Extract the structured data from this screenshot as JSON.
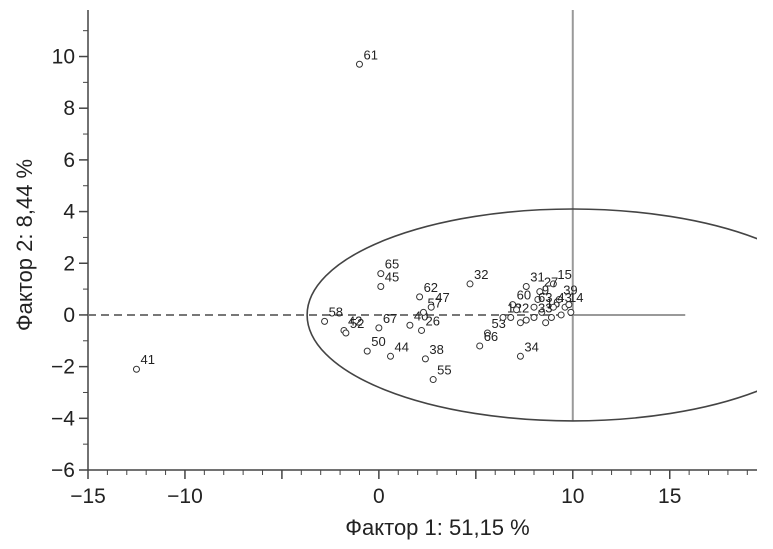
{
  "chart_data": {
    "type": "scatter",
    "title": "",
    "xlabel": "Фактор 1: 51,15 %",
    "ylabel": "Фактор 2: 8,44 %",
    "xlim": [
      -15,
      19.5
    ],
    "ylim": [
      -6,
      11.8
    ],
    "xticks": [
      -15,
      -10,
      -5,
      0,
      5,
      10,
      15
    ],
    "yticks": [
      -6,
      -4,
      -2,
      0,
      2,
      4,
      6,
      8,
      10
    ],
    "xtick_labels": [
      "−15",
      "−10",
      "",
      "0",
      "",
      "10",
      "15"
    ],
    "ytick_labels": [
      "−6",
      "−4",
      "−2",
      "0",
      "2",
      "4",
      "6",
      "8",
      "10"
    ],
    "grid": false,
    "reference_lines": {
      "vertical_x": 10,
      "horizontal_dashed_y": 0
    },
    "ellipse": {
      "center": [
        10,
        0
      ],
      "semi_axis_x": 13.7,
      "semi_axis_y": 4.1
    },
    "points": [
      {
        "label": "61",
        "x": -1,
        "y": 9.7
      },
      {
        "label": "41",
        "x": -12.5,
        "y": -2.1
      },
      {
        "label": "58",
        "x": -2.8,
        "y": -0.25
      },
      {
        "label": "42",
        "x": -1.8,
        "y": -0.6
      },
      {
        "label": "52",
        "x": -1.7,
        "y": -0.7
      },
      {
        "label": "65",
        "x": 0.1,
        "y": 1.6
      },
      {
        "label": "45",
        "x": 0.1,
        "y": 1.1
      },
      {
        "label": "67",
        "x": 0.0,
        "y": -0.5
      },
      {
        "label": "50",
        "x": -0.6,
        "y": -1.4
      },
      {
        "label": "44",
        "x": 0.6,
        "y": -1.6
      },
      {
        "label": "62",
        "x": 2.1,
        "y": 0.7
      },
      {
        "label": "40",
        "x": 1.6,
        "y": -0.4
      },
      {
        "label": "57",
        "x": 2.3,
        "y": 0.1
      },
      {
        "label": "47",
        "x": 2.7,
        "y": 0.3
      },
      {
        "label": "26",
        "x": 2.2,
        "y": -0.6
      },
      {
        "label": "38",
        "x": 2.4,
        "y": -1.7
      },
      {
        "label": "55",
        "x": 2.8,
        "y": -2.5
      },
      {
        "label": "32",
        "x": 4.7,
        "y": 1.2
      },
      {
        "label": "53",
        "x": 5.6,
        "y": -0.7
      },
      {
        "label": "66",
        "x": 5.2,
        "y": -1.2
      },
      {
        "label": "34",
        "x": 7.3,
        "y": -1.6
      },
      {
        "label": "31",
        "x": 7.6,
        "y": 1.1
      },
      {
        "label": "15",
        "x": 9.0,
        "y": 1.2
      },
      {
        "label": "27",
        "x": 8.3,
        "y": 0.9
      },
      {
        "label": "60",
        "x": 6.9,
        "y": 0.4
      },
      {
        "label": "9",
        "x": 8.2,
        "y": 0.6
      },
      {
        "label": "63",
        "x": 8.0,
        "y": 0.3
      },
      {
        "label": "39",
        "x": 9.3,
        "y": 0.6
      },
      {
        "label": "12",
        "x": 6.4,
        "y": -0.1
      },
      {
        "label": "22",
        "x": 6.8,
        "y": -0.1
      },
      {
        "label": "16",
        "x": 8.4,
        "y": 0.1
      },
      {
        "label": "43",
        "x": 9.0,
        "y": 0.3
      },
      {
        "label": "33",
        "x": 8.0,
        "y": -0.1
      },
      {
        "label": "14",
        "x": 9.6,
        "y": 0.3
      },
      {
        "label": "",
        "x": 7.1,
        "y": 0.2
      },
      {
        "label": "",
        "x": 7.6,
        "y": -0.2
      },
      {
        "label": "",
        "x": 8.6,
        "y": -0.3
      },
      {
        "label": "",
        "x": 9.4,
        "y": 0.0
      },
      {
        "label": "",
        "x": 9.8,
        "y": 0.4
      },
      {
        "label": "",
        "x": 9.9,
        "y": 0.1
      },
      {
        "label": "",
        "x": 7.3,
        "y": -0.3
      },
      {
        "label": "",
        "x": 8.9,
        "y": -0.1
      }
    ]
  }
}
